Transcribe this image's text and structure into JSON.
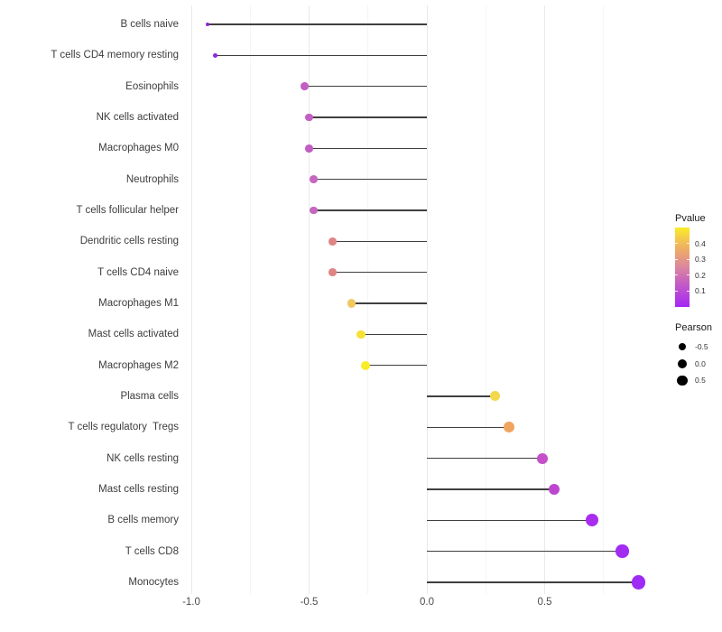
{
  "chart_data": {
    "type": "lollipop",
    "title": "",
    "xlabel": "",
    "ylabel": "",
    "grid": "vertical-only",
    "x_axis": {
      "range": [
        -1.028,
        0.972
      ],
      "ticks": [
        -1.0,
        -0.5,
        0.0,
        0.5
      ],
      "tick_labels": [
        "-1.0",
        "-0.5",
        "0.0",
        "0.5"
      ],
      "minor_gridlines": [
        -0.75,
        -0.25,
        0.25,
        0.75
      ]
    },
    "series": [
      {
        "label": "B cells naive",
        "pearson": -0.93,
        "pvalue": 0.01,
        "color": "#8B24DE",
        "radius": 2.2
      },
      {
        "label": "T cells CD4 memory resting",
        "pearson": -0.9,
        "pvalue": 0.02,
        "color": "#8E27E0",
        "radius": 2.5
      },
      {
        "label": "Eosinophils",
        "pearson": -0.52,
        "pvalue": 0.16,
        "color": "#C25FC4",
        "radius": 4.3
      },
      {
        "label": "NK cells activated",
        "pearson": -0.5,
        "pvalue": 0.16,
        "color": "#C25EC4",
        "radius": 4.3
      },
      {
        "label": "Macrophages M0",
        "pearson": -0.5,
        "pvalue": 0.16,
        "color": "#C35DC4",
        "radius": 4.3
      },
      {
        "label": "Neutrophils",
        "pearson": -0.48,
        "pvalue": 0.17,
        "color": "#C566BF",
        "radius": 4.4
      },
      {
        "label": "T cells follicular helper",
        "pearson": -0.48,
        "pvalue": 0.17,
        "color": "#C566BF",
        "radius": 4.4
      },
      {
        "label": "Dendritic cells resting",
        "pearson": -0.4,
        "pvalue": 0.27,
        "color": "#DE8584",
        "radius": 4.3
      },
      {
        "label": "T cells CD4 naive",
        "pearson": -0.4,
        "pvalue": 0.27,
        "color": "#DE8584",
        "radius": 4.3
      },
      {
        "label": "Macrophages M1",
        "pearson": -0.32,
        "pvalue": 0.38,
        "color": "#F1C75F",
        "radius": 4.6
      },
      {
        "label": "Mast cells activated",
        "pearson": -0.28,
        "pvalue": 0.44,
        "color": "#F5E132",
        "radius": 4.8
      },
      {
        "label": "Macrophages M2",
        "pearson": -0.26,
        "pvalue": 0.46,
        "color": "#F8EB28",
        "radius": 5.0
      },
      {
        "label": "Plasma cells",
        "pearson": 0.29,
        "pvalue": 0.42,
        "color": "#F2D84A",
        "radius": 5.5
      },
      {
        "label": "T cells regulatory  Tregs",
        "pearson": 0.35,
        "pvalue": 0.33,
        "color": "#EFA55F",
        "radius": 5.9
      },
      {
        "label": "NK cells resting",
        "pearson": 0.49,
        "pvalue": 0.13,
        "color": "#C450CA",
        "radius": 6.1
      },
      {
        "label": "Mast cells resting",
        "pearson": 0.54,
        "pvalue": 0.11,
        "color": "#BC47CE",
        "radius": 6.3
      },
      {
        "label": "B cells memory",
        "pearson": 0.7,
        "pvalue": 0.05,
        "color": "#A82DF0",
        "radius": 7.0
      },
      {
        "label": "T cells CD8",
        "pearson": 0.83,
        "pvalue": 0.04,
        "color": "#A22CF2",
        "radius": 7.2
      },
      {
        "label": "Monocytes",
        "pearson": 0.9,
        "pvalue": 0.03,
        "color": "#9E2BF4",
        "radius": 7.6
      }
    ],
    "legend_pvalue": {
      "title": "Pvalue",
      "range": [
        0,
        0.5
      ],
      "tick_values": [
        0.4,
        0.3,
        0.2,
        0.1
      ],
      "tick_labels": [
        "0.4",
        "0.3",
        "0.2",
        "0.1"
      ],
      "gradient_bottom_to_top": [
        {
          "pos": 0,
          "color": "#A428F5"
        },
        {
          "pos": 12,
          "color": "#B23DE0"
        },
        {
          "pos": 25,
          "color": "#C055CC"
        },
        {
          "pos": 38,
          "color": "#CE6DB4"
        },
        {
          "pos": 50,
          "color": "#DB87A0"
        },
        {
          "pos": 62,
          "color": "#E69A7F"
        },
        {
          "pos": 74,
          "color": "#EFAF62"
        },
        {
          "pos": 86,
          "color": "#F5C94C"
        },
        {
          "pos": 100,
          "color": "#FAEC27"
        }
      ]
    },
    "legend_pearson": {
      "title": "Pearson",
      "items": [
        {
          "label": "-0.5",
          "value": -0.5,
          "radius": 4.3
        },
        {
          "label": "0.0",
          "value": 0.0,
          "radius": 5.0
        },
        {
          "label": "0.5",
          "value": 0.5,
          "radius": 5.8
        }
      ]
    },
    "colors": {
      "segment": "#3F3F3F",
      "grid_major": "#E9E9E9",
      "grid_minor": "#F5F5F5",
      "axis_text": "#4D4D4D",
      "background": "#FFFFFF"
    }
  }
}
